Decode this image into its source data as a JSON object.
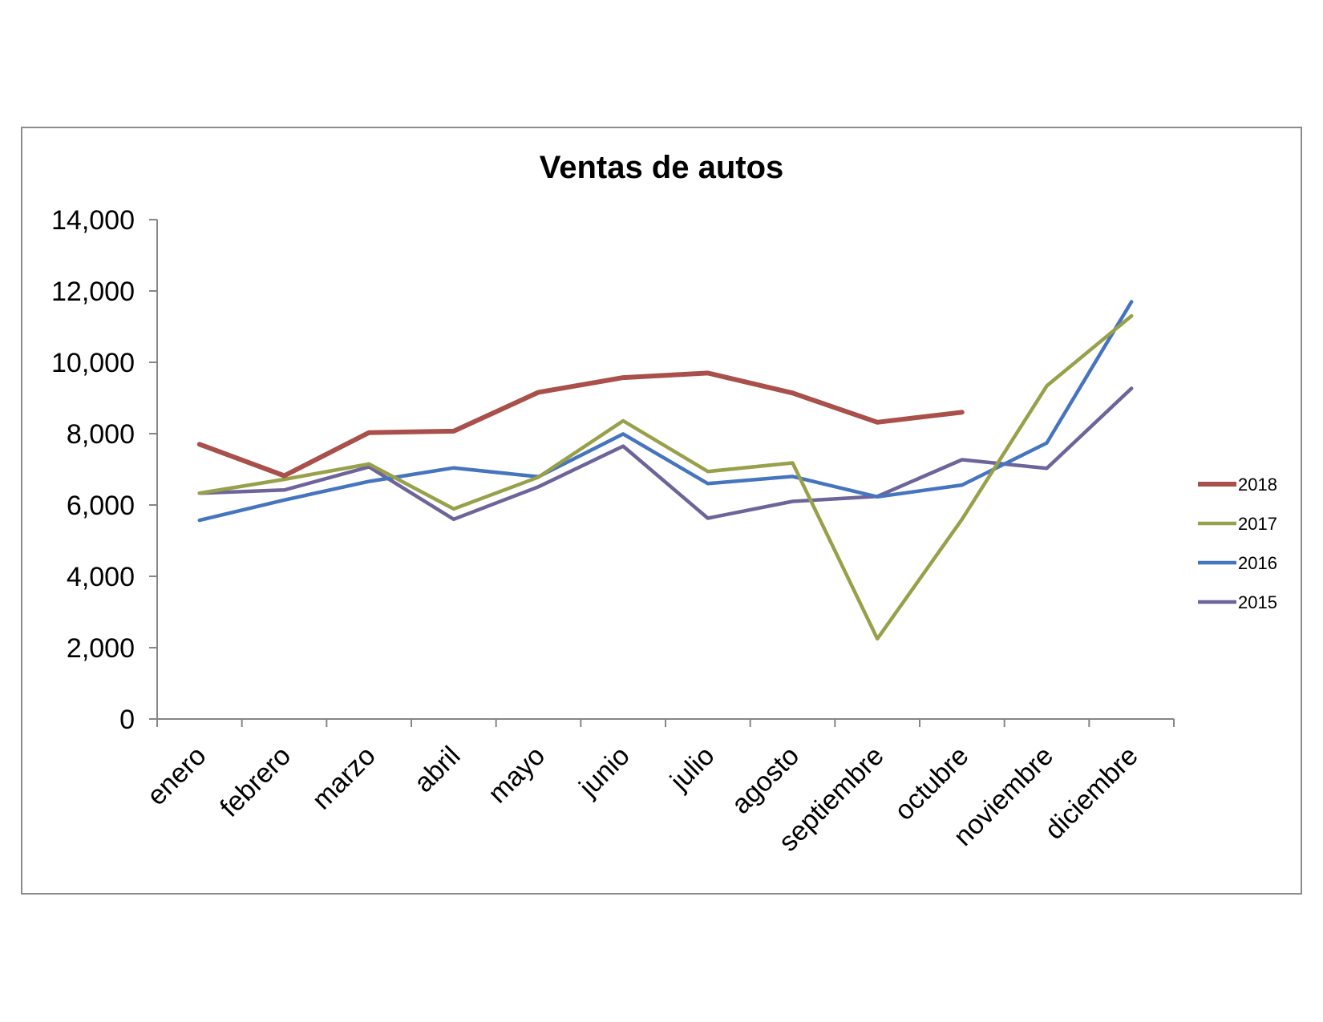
{
  "chart_data": {
    "type": "line",
    "title": "Ventas de autos",
    "xlabel": "",
    "ylabel": "",
    "ylim": [
      0,
      14000
    ],
    "yticks": [
      "0",
      "2,000",
      "4,000",
      "6,000",
      "8,000",
      "10,000",
      "12,000",
      "14,000"
    ],
    "ytick_values": [
      0,
      2000,
      4000,
      6000,
      8000,
      10000,
      12000,
      14000
    ],
    "categories": [
      "enero",
      "febrero",
      "marzo",
      "abril",
      "mayo",
      "junio",
      "julio",
      "agosto",
      "septiembre",
      "octubre",
      "noviembre",
      "diciembre"
    ],
    "grid": false,
    "legend_position": "right",
    "series": [
      {
        "name": "2018",
        "color": "#a9504b",
        "values": [
          7700,
          6820,
          8030,
          8070,
          9160,
          9570,
          9700,
          9140,
          8320,
          8600,
          null,
          null
        ]
      },
      {
        "name": "2017",
        "color": "#98a04a",
        "values": [
          6330,
          6720,
          7150,
          5890,
          6780,
          8360,
          6940,
          7180,
          2250,
          5600,
          9340,
          11300
        ]
      },
      {
        "name": "2016",
        "color": "#4675bf",
        "values": [
          5570,
          6140,
          6660,
          7040,
          6790,
          7990,
          6600,
          6800,
          6230,
          6560,
          7740,
          11700
        ]
      },
      {
        "name": "2015",
        "color": "#6e649a",
        "values": [
          6330,
          6420,
          7070,
          5600,
          6510,
          7650,
          5630,
          6100,
          6240,
          7270,
          7030,
          9270
        ]
      }
    ]
  }
}
